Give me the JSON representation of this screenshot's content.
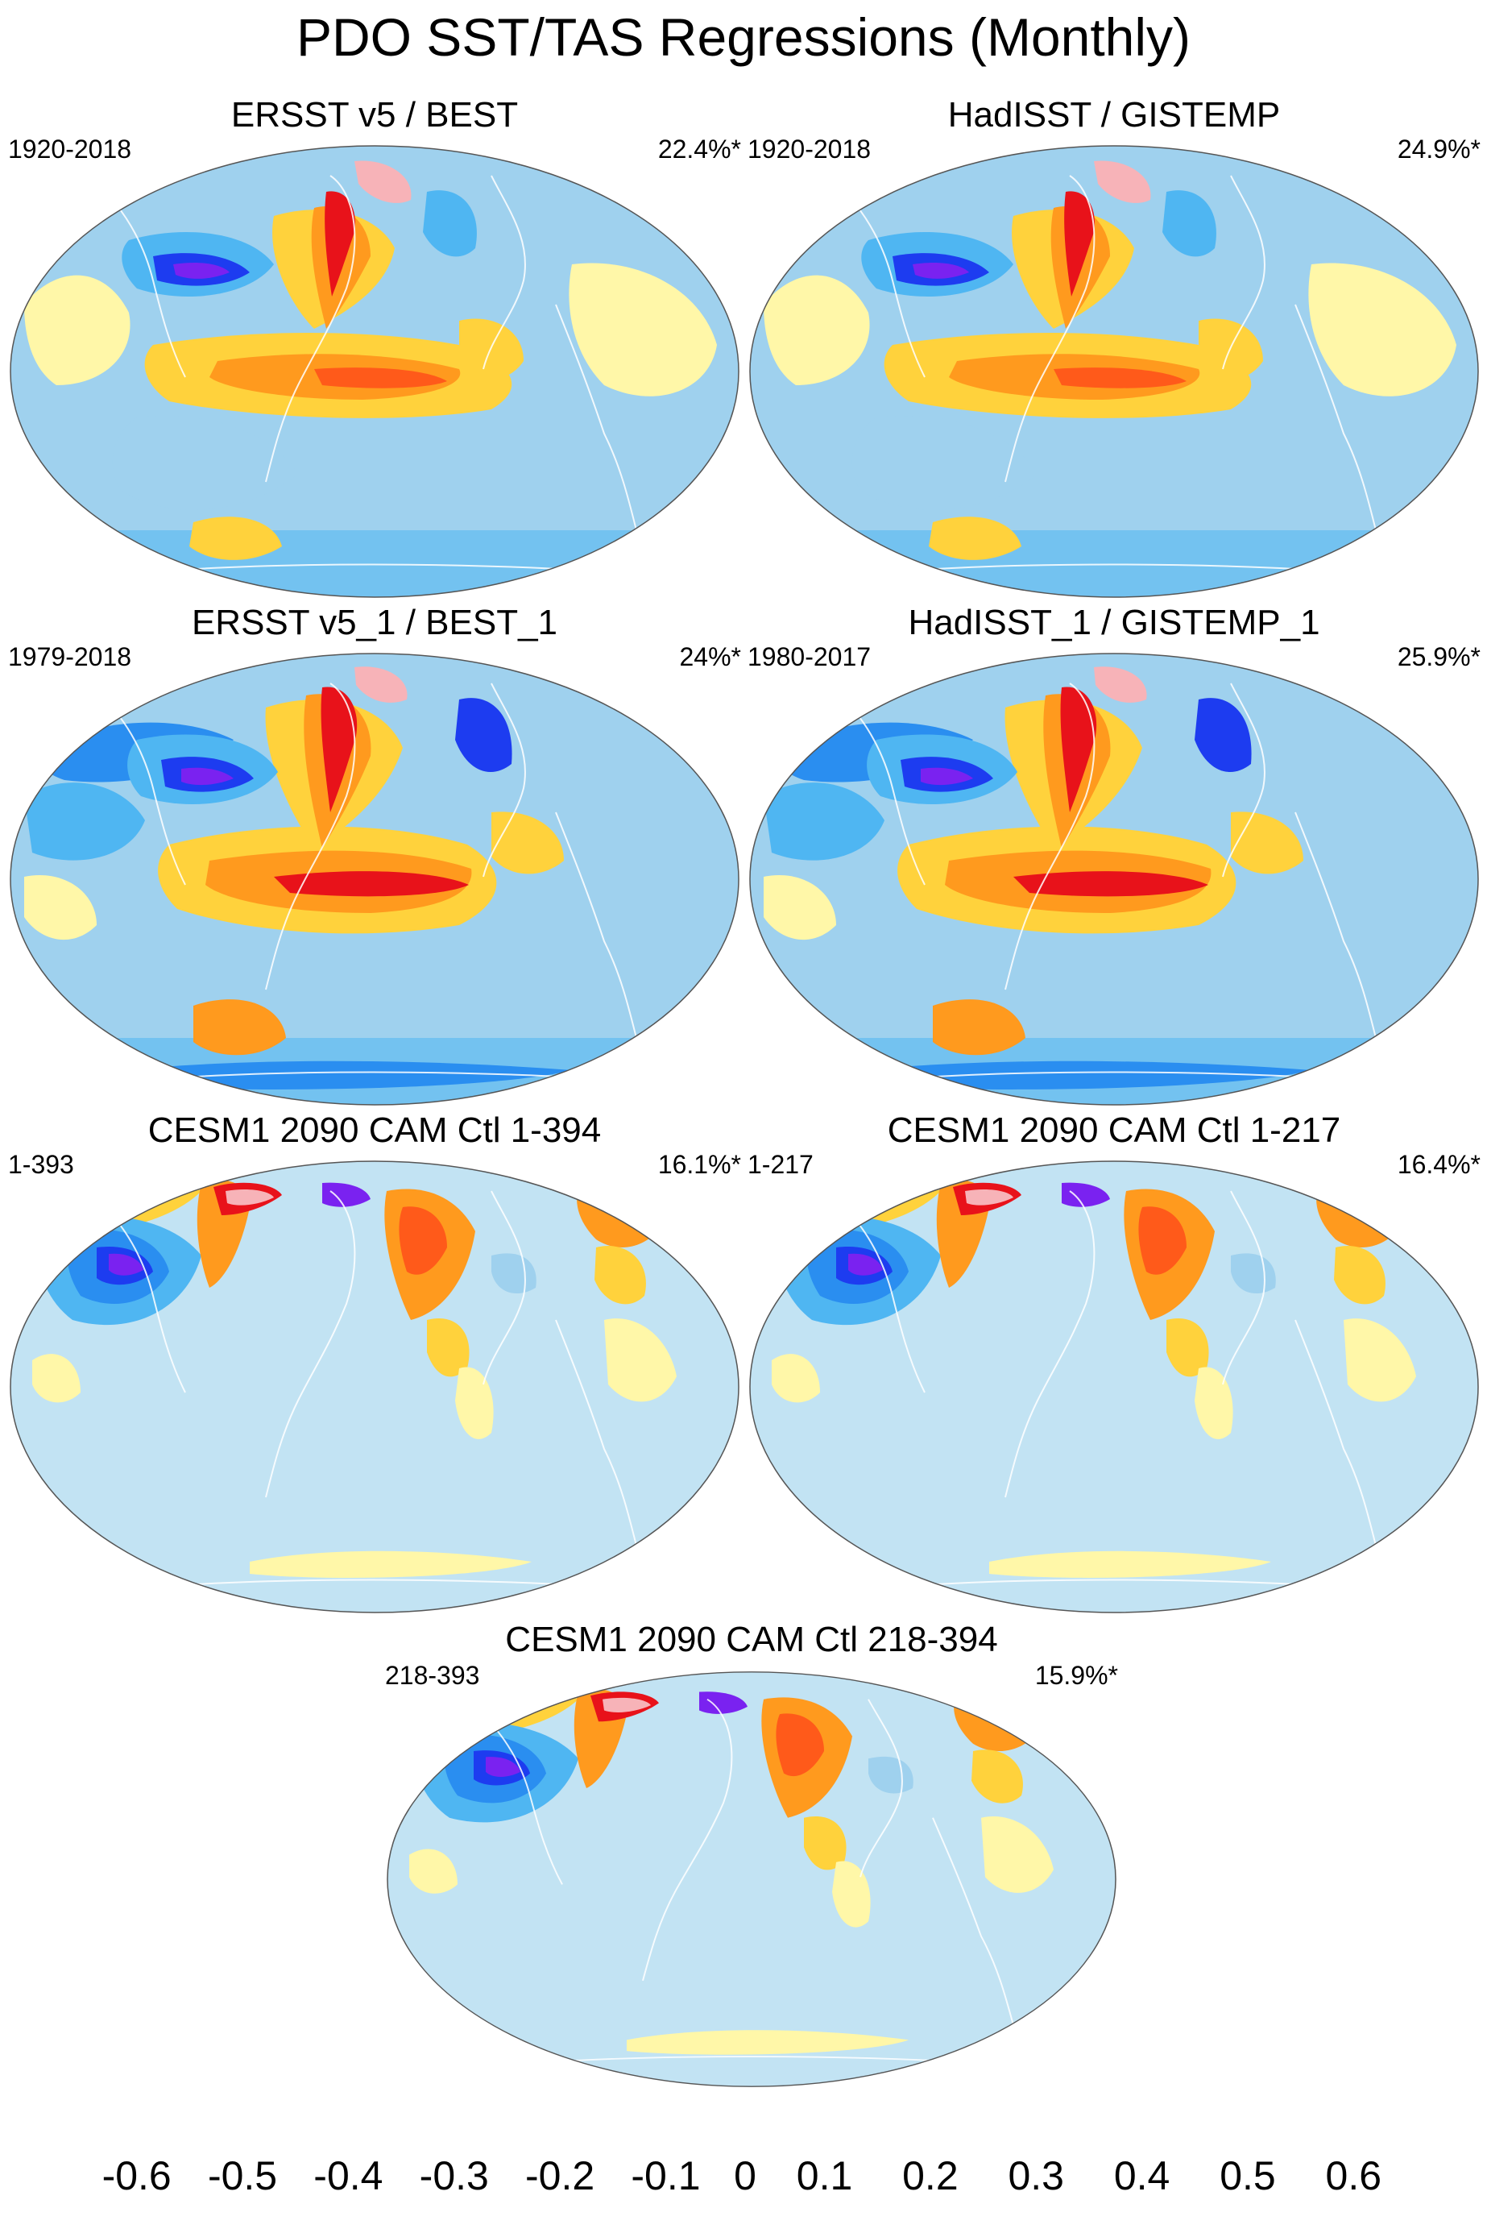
{
  "title": "PDO SST/TAS Regressions (Monthly)",
  "palette": {
    "ocean_neutral": "#c2e3f3",
    "light_blue": "#9fd1ee",
    "mid_blue": "#4fb6f2",
    "blue": "#2a8ef0",
    "deep_blue": "#1d3cf0",
    "purple": "#7a22f0",
    "pale_yellow": "#fff7a8",
    "yellow": "#ffd23c",
    "orange": "#ff9a1e",
    "red_orange": "#ff5a1a",
    "red": "#e8121a",
    "dark_red": "#c81018",
    "pink": "#f7b3b8",
    "coast": "#ffffff"
  },
  "panels": [
    {
      "id": "ersst-best",
      "title": "ERSST v5 / BEST",
      "left_label": "1920-2018",
      "right_label": "22.4%*",
      "pattern": "obs"
    },
    {
      "id": "hadisst-gistemp",
      "title": "HadISST / GISTEMP",
      "left_label": "1920-2018",
      "right_label": "24.9%*",
      "pattern": "obs"
    },
    {
      "id": "ersst-best-1",
      "title": "ERSST v5_1 / BEST_1",
      "left_label": "1979-2018",
      "right_label": "24%*",
      "pattern": "obs2"
    },
    {
      "id": "hadisst-gistemp-1",
      "title": "HadISST_1 / GISTEMP_1",
      "left_label": "1980-2017",
      "right_label": "25.9%*",
      "pattern": "obs2"
    },
    {
      "id": "cesm1-1-394",
      "title": "CESM1 2090 CAM Ctl 1-394",
      "left_label": "1-393",
      "right_label": "16.1%*",
      "pattern": "model"
    },
    {
      "id": "cesm1-1-217",
      "title": "CESM1 2090 CAM Ctl 1-217",
      "left_label": "1-217",
      "right_label": "16.4%*",
      "pattern": "model"
    },
    {
      "id": "cesm1-218-394",
      "title": "CESM1 2090 CAM Ctl 218-394",
      "left_label": "218-393",
      "right_label": "15.9%*",
      "pattern": "model"
    }
  ],
  "colorbar": {
    "colors": [
      "#7f1ff0",
      "#5a14f0",
      "#1414f5",
      "#2a3cf0",
      "#3366f0",
      "#2f7ff2",
      "#2a96f5",
      "#1eb4fa",
      "#4fc1f5",
      "#7fc8ee",
      "#a8d6f0",
      "#c2e3f3",
      "#fffaa8",
      "#ffe84f",
      "#ffd22a",
      "#ffbf1f",
      "#ffa51a",
      "#ff8a14",
      "#ff6a14",
      "#ff4414",
      "#f01414",
      "#dc0a0a",
      "#c8080a",
      "#e25a5a",
      "#f7b3b8"
    ],
    "labels": [
      "-0.6",
      "-0.5",
      "-0.4",
      "-0.3",
      "-0.2",
      "-0.1",
      "0",
      "0.1",
      "0.2",
      "0.3",
      "0.4",
      "0.5",
      "0.6"
    ]
  }
}
